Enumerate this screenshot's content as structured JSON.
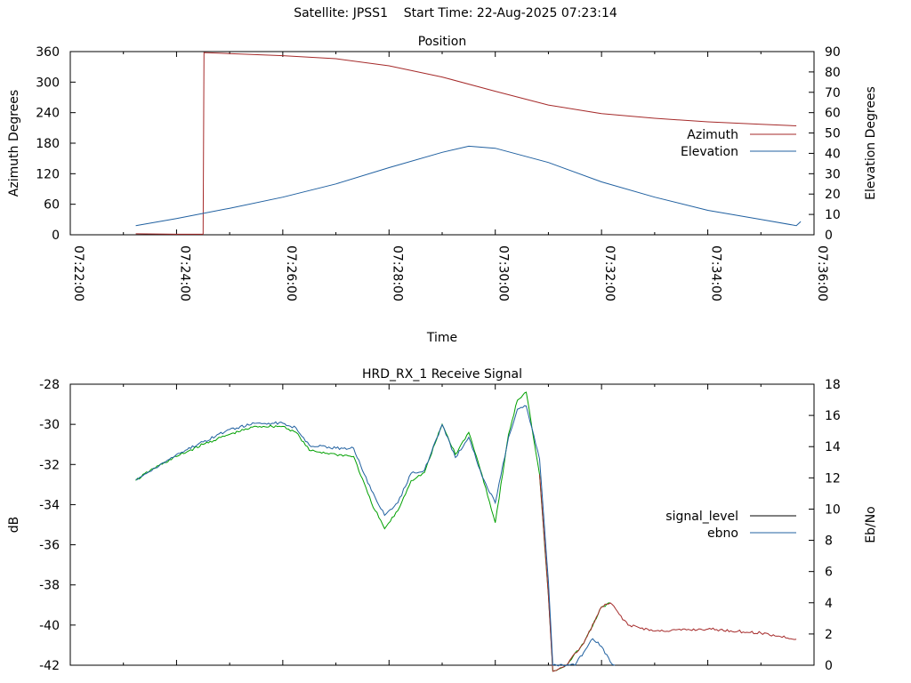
{
  "page": {
    "title": "Satellite: JPSS1    Start Time: 22-Aug-2025 07:23:14"
  },
  "chart_data": [
    {
      "type": "line",
      "title": "Position",
      "xlabel": "Time",
      "ylabel": "Azimuth Degrees",
      "y2label": "Elevation Degrees",
      "xlim": [
        "07:22:00",
        "07:36:00"
      ],
      "xticks": [
        "07:22:00",
        "07:24:00",
        "07:26:00",
        "07:28:00",
        "07:30:00",
        "07:32:00",
        "07:34:00",
        "07:36:00"
      ],
      "ylim": [
        0,
        360
      ],
      "yticks": [
        "0",
        "60",
        "120",
        "180",
        "240",
        "300",
        "360"
      ],
      "y2lim": [
        0,
        90
      ],
      "y2ticks": [
        "0",
        "10",
        "20",
        "30",
        "40",
        "50",
        "60",
        "70",
        "80",
        "90"
      ],
      "legend_position": "right",
      "grid": false,
      "series": [
        {
          "name": "Azimuth",
          "axis": "y",
          "color": "#a52a2a",
          "x": [
            "07:23:14",
            "07:24:00",
            "07:24:30",
            "07:24:31",
            "07:26:00",
            "07:27:00",
            "07:28:00",
            "07:29:00",
            "07:30:00",
            "07:31:00",
            "07:32:00",
            "07:33:00",
            "07:34:00",
            "07:35:00",
            "07:35:40"
          ],
          "y": [
            2,
            1,
            1,
            358,
            352,
            346,
            332,
            310,
            282,
            255,
            238,
            229,
            222,
            217,
            214
          ]
        },
        {
          "name": "Elevation",
          "axis": "y2",
          "color": "#2060a0",
          "x": [
            "07:23:14",
            "07:24:00",
            "07:25:00",
            "07:26:00",
            "07:27:00",
            "07:28:00",
            "07:29:00",
            "07:29:30",
            "07:30:00",
            "07:31:00",
            "07:32:00",
            "07:33:00",
            "07:34:00",
            "07:35:00",
            "07:35:40",
            "07:35:45"
          ],
          "y": [
            4.5,
            8,
            13,
            18.5,
            25,
            33,
            40.5,
            43.5,
            42.5,
            35.5,
            26,
            18.5,
            12,
            7.5,
            4.5,
            6.5
          ]
        }
      ]
    },
    {
      "type": "line",
      "title": "HRD_RX_1 Receive Signal",
      "ylabel": "dB",
      "y2label": "Eb/No",
      "xlim": [
        "07:22:00",
        "07:36:00"
      ],
      "ylim": [
        -42,
        -28
      ],
      "yticks": [
        "-42",
        "-40",
        "-38",
        "-36",
        "-34",
        "-32",
        "-30",
        "-28"
      ],
      "y2lim": [
        0,
        18
      ],
      "y2ticks": [
        "0",
        "2",
        "4",
        "6",
        "8",
        "10",
        "12",
        "14",
        "16",
        "18"
      ],
      "legend_position": "right",
      "grid": false,
      "series": [
        {
          "name": "signal_level",
          "axis": "y",
          "color": "#000000",
          "segments": [
            {
              "color": "#00a000",
              "x": [
                "07:23:14",
                "07:23:30",
                "07:24:00",
                "07:24:30",
                "07:25:00",
                "07:25:30",
                "07:26:00",
                "07:26:15",
                "07:26:30",
                "07:27:00",
                "07:27:20",
                "07:27:40",
                "07:27:55",
                "07:28:10",
                "07:28:25",
                "07:28:40",
                "07:29:00",
                "07:29:15",
                "07:29:30",
                "07:29:45",
                "07:30:00",
                "07:30:15",
                "07:30:25",
                "07:30:35",
                "07:30:50",
                "07:31:00",
                "07:31:05",
                "07:31:20",
                "07:31:40",
                "07:32:00",
                "07:32:10"
              ],
              "y": [
                -32.8,
                -32.3,
                -31.6,
                -31.0,
                -30.5,
                -30.1,
                -30.1,
                -30.4,
                -31.3,
                -31.5,
                -31.6,
                -33.9,
                -35.2,
                -34.3,
                -32.8,
                -32.4,
                -30.0,
                -31.5,
                -30.4,
                -32.5,
                -34.9,
                -30.5,
                -28.8,
                -28.4,
                -32.5,
                -38.5,
                -42.3,
                -42.0,
                -40.9,
                -39.1,
                -38.9
              ]
            },
            {
              "color": "#a52a2a",
              "x": [
                "07:30:50",
                "07:31:00",
                "07:31:05",
                "07:31:20",
                "07:31:40",
                "07:32:00",
                "07:32:10",
                "07:32:30",
                "07:33:00",
                "07:34:00",
                "07:35:00",
                "07:35:40"
              ],
              "y": [
                -32.5,
                -38.5,
                -42.3,
                -42.0,
                -40.9,
                -39.1,
                -38.9,
                -40.0,
                -40.3,
                -40.2,
                -40.4,
                -40.7
              ]
            }
          ]
        },
        {
          "name": "ebno",
          "axis": "y2",
          "color": "#2060a0",
          "x": [
            "07:23:14",
            "07:23:30",
            "07:24:00",
            "07:24:30",
            "07:25:00",
            "07:25:30",
            "07:26:00",
            "07:26:15",
            "07:26:30",
            "07:27:00",
            "07:27:20",
            "07:27:40",
            "07:27:55",
            "07:28:10",
            "07:28:25",
            "07:28:40",
            "07:29:00",
            "07:29:15",
            "07:29:30",
            "07:29:45",
            "07:30:00",
            "07:30:15",
            "07:30:25",
            "07:30:35",
            "07:30:50",
            "07:31:00",
            "07:31:05",
            "07:31:30",
            "07:31:50",
            "07:32:00",
            "07:32:10",
            "07:32:15"
          ],
          "y": [
            11.9,
            12.4,
            13.5,
            14.3,
            15.1,
            15.5,
            15.5,
            15.2,
            14.1,
            13.9,
            13.9,
            11.2,
            9.6,
            10.4,
            12.3,
            12.5,
            15.4,
            13.3,
            14.6,
            12.1,
            10.4,
            14.6,
            16.4,
            16.6,
            13.2,
            5.4,
            0,
            0,
            1.7,
            1.2,
            0.2,
            0
          ]
        }
      ]
    }
  ]
}
